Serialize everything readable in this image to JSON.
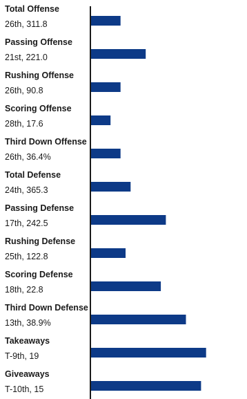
{
  "chart_data": {
    "type": "bar",
    "orientation": "horizontal",
    "bar_color": "#0d3a87",
    "axis_color": "#1a1a1a",
    "categories": [
      {
        "name": "Total Offense",
        "label": "26th, 311.8",
        "rank": 26
      },
      {
        "name": "Passing Offense",
        "label": "21st, 221.0",
        "rank": 21
      },
      {
        "name": "Rushing Offense",
        "label": "26th, 90.8",
        "rank": 26
      },
      {
        "name": "Scoring Offense",
        "label": "28th, 17.6",
        "rank": 28
      },
      {
        "name": "Third Down Offense",
        "label": "26th, 36.4%",
        "rank": 26
      },
      {
        "name": "Total Defense",
        "label": "24th, 365.3",
        "rank": 24
      },
      {
        "name": "Passing Defense",
        "label": "17th, 242.5",
        "rank": 17
      },
      {
        "name": "Rushing Defense",
        "label": "25th, 122.8",
        "rank": 25
      },
      {
        "name": "Scoring Defense",
        "label": "18th, 22.8",
        "rank": 18
      },
      {
        "name": "Third Down Defense",
        "label": "13th, 38.9%",
        "rank": 13
      },
      {
        "name": "Takeaways",
        "label": "T-9th, 19",
        "rank": 9
      },
      {
        "name": "Giveaways",
        "label": "T-10th, 15",
        "rank": 10
      }
    ]
  }
}
